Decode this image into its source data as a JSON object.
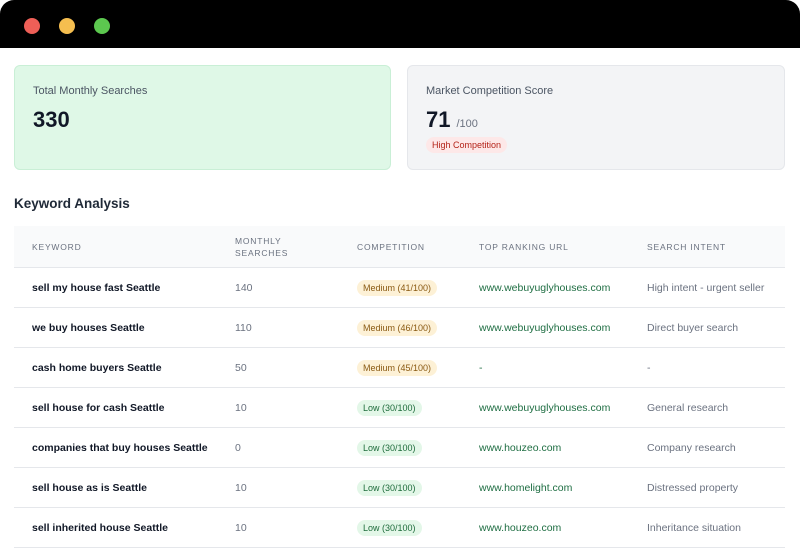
{
  "metrics": [
    {
      "label": "Total Monthly Searches",
      "value": 330
    },
    {
      "label": "Market Competition Score",
      "value": 71,
      "suffix": "/100",
      "badge": "High Competition"
    }
  ],
  "section_title": "Keyword Analysis",
  "table": {
    "headers": [
      "KEYWORD",
      "MONTHLY SEARCHES",
      "COMPETITION",
      "TOP RANKING URL",
      "SEARCH INTENT"
    ],
    "rows": [
      [
        "sell my house fast Seattle",
        140,
        {
          "text": "Medium (41/100)",
          "color": "#8a5a12",
          "background": "#fdf1d6"
        },
        "www.webuyuglyhouses.com",
        "High intent - urgent seller"
      ],
      [
        "we buy houses Seattle",
        110,
        {
          "text": "Medium (46/100)",
          "color": "#8a5a12",
          "background": "#fdf1d6"
        },
        "www.webuyuglyhouses.com",
        "Direct buyer search"
      ],
      [
        "cash home buyers Seattle",
        50,
        {
          "text": "Medium (45/100)",
          "color": "#8a5a12",
          "background": "#fdf1d6"
        },
        "-",
        "-"
      ],
      [
        "sell house for cash Seattle",
        10,
        {
          "text": "Low (30/100)",
          "color": "#1d6b3a",
          "background": "#e3f7e8"
        },
        "www.webuyuglyhouses.com",
        "General research"
      ],
      [
        "companies that buy houses Seattle",
        0,
        {
          "text": "Low (30/100)",
          "color": "#1d6b3a",
          "background": "#e3f7e8"
        },
        "www.houzeo.com",
        "Company research"
      ],
      [
        "sell house as is Seattle",
        10,
        {
          "text": "Low (30/100)",
          "color": "#1d6b3a",
          "background": "#e3f7e8"
        },
        "www.homelight.com",
        "Distressed property"
      ],
      [
        "sell inherited house Seattle",
        10,
        {
          "text": "Low (30/100)",
          "color": "#1d6b3a",
          "background": "#e3f7e8"
        },
        "www.houzeo.com",
        "Inheritance situation"
      ]
    ]
  }
}
